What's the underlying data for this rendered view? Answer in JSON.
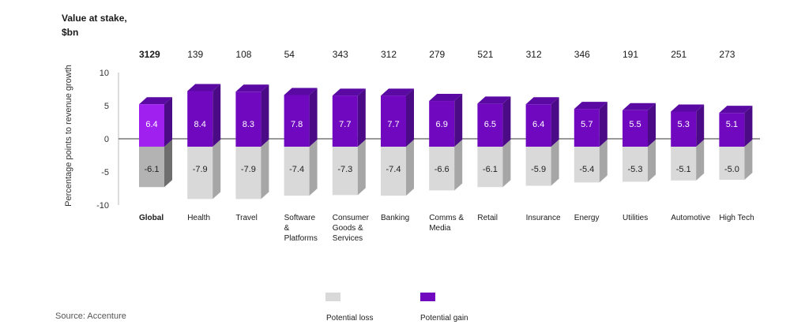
{
  "heading": {
    "line1": "Value at stake,",
    "line2": "$bn"
  },
  "source": "Source: Accenture",
  "legend": [
    {
      "label": "Potential loss",
      "color": "#d9d9d9"
    },
    {
      "label": "Potential gain",
      "color": "#6f08bf"
    }
  ],
  "chart_data": {
    "type": "bar",
    "title": "",
    "xlabel": "",
    "ylabel": "Percentage points to revenue growth",
    "ylim": [
      -10,
      10
    ],
    "yticks": [
      10,
      5,
      0,
      -5,
      -10
    ],
    "ytick_labels": [
      "10",
      "5",
      "0",
      "-5",
      "-10"
    ],
    "grid": false,
    "categories": [
      [
        "Global"
      ],
      [
        "Health"
      ],
      [
        "Travel"
      ],
      [
        "Software",
        "&",
        "Platforms"
      ],
      [
        "Consumer",
        "Goods &",
        "Services"
      ],
      [
        "Banking"
      ],
      [
        "Comms &",
        "Media"
      ],
      [
        "Retail"
      ],
      [
        "Insurance"
      ],
      [
        "Energy"
      ],
      [
        "Utilities"
      ],
      [
        "Automotive"
      ],
      [
        "High Tech"
      ]
    ],
    "value_at_stake": [
      3129,
      139,
      108,
      54,
      343,
      312,
      279,
      521,
      312,
      346,
      191,
      251,
      273
    ],
    "series": [
      {
        "name": "Potential gain",
        "values": [
          6.4,
          8.4,
          8.3,
          7.8,
          7.7,
          7.7,
          6.9,
          6.5,
          6.4,
          5.7,
          5.5,
          5.3,
          5.1
        ],
        "labels": [
          "6.4",
          "8.4",
          "8.3",
          "7.8",
          "7.7",
          "7.7",
          "6.9",
          "6.5",
          "6.4",
          "5.7",
          "5.5",
          "5.3",
          "5.1"
        ]
      },
      {
        "name": "Potential loss",
        "values": [
          -6.1,
          -7.9,
          -7.9,
          -7.4,
          -7.3,
          -7.4,
          -6.6,
          -6.1,
          -5.9,
          -5.4,
          -5.3,
          -5.1,
          -5.0
        ],
        "labels": [
          "-6.1",
          "-7.9",
          "-7.9",
          "-7.4",
          "-7.3",
          "-7.4",
          "-6.6",
          "-6.1",
          "-5.9",
          "-5.4",
          "-5.3",
          "-5.1",
          "-5.0"
        ]
      }
    ],
    "colors": {
      "gain_front": "#6f08bf",
      "gain_side": "#4b0a86",
      "gain_top": "#5a0aa3",
      "global_gain_front": "#a020f0",
      "loss_front": "#d9d9d9",
      "loss_side": "#a6a6a6",
      "global_loss_front": "#b3b3b3",
      "global_loss_side": "#6e6e6e"
    }
  }
}
